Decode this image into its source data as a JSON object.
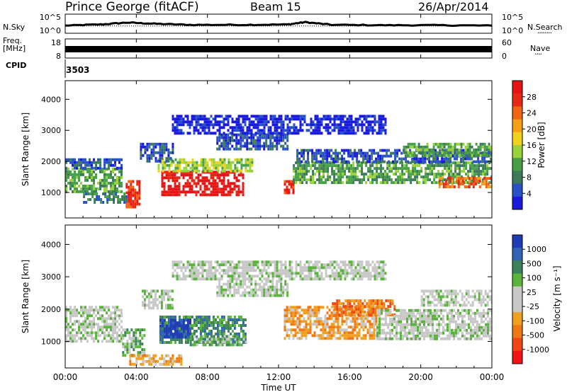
{
  "header": {
    "station": "Prince George (fitACF)",
    "beam": "Beam 15",
    "date": "26/Apr/2014"
  },
  "side_labels": {
    "nsky": "N.Sky",
    "freq_line1": "Freq.",
    "freq_line2": "[MHz]",
    "cpid": "CPID",
    "nsearch": "N.Search",
    "nave": "Nave",
    "dots_nsearch": "········",
    "dots_nave": "····"
  },
  "cpid_value": "3503",
  "colors": {
    "power_scale": [
      "#1a1adc",
      "#2a52c8",
      "#3c7a5a",
      "#46a046",
      "#9ad23c",
      "#f0d21e",
      "#f5a014",
      "#f06414",
      "#e62814",
      "#e61414"
    ],
    "velocity_scale": [
      "#1e3cb4",
      "#3264b4",
      "#3c825a",
      "#5ab43c",
      "#c8c8c8",
      "#c8c8c8",
      "#f0a01e",
      "#f07814",
      "#f04614",
      "#f01414"
    ]
  },
  "chart_data": [
    {
      "type": "line",
      "name": "noise-panel",
      "yleft_ticks": [
        "10^5",
        "10^0"
      ],
      "yright_ticks": [
        "10^5",
        "10^0"
      ],
      "series": [
        {
          "name": "N.Sky",
          "x": [
            "00:00",
            "02:00",
            "03:30",
            "05:00",
            "07:00",
            "10:00",
            "12:30",
            "13:30",
            "15:00",
            "18:00",
            "21:00",
            "24:00"
          ],
          "values": [
            2.0,
            2.3,
            2.8,
            2.5,
            2.2,
            2.2,
            2.3,
            2.9,
            2.2,
            2.1,
            2.1,
            2.0
          ]
        },
        {
          "name": "N.Search",
          "x": [
            "00:00",
            "12:00",
            "24:00"
          ],
          "values": [
            1.9,
            1.9,
            1.9
          ]
        }
      ]
    },
    {
      "type": "line",
      "name": "freq-panel",
      "yleft_ticks": [
        "18",
        "8"
      ],
      "yright_ticks": [
        "60",
        "0"
      ],
      "series": [
        {
          "name": "Freq.",
          "x": [
            "00:00",
            "24:00"
          ],
          "values": [
            11,
            11
          ]
        },
        {
          "name": "Nave",
          "x": [
            "00:00",
            "24:00"
          ],
          "values": [
            30,
            30
          ]
        }
      ]
    },
    {
      "type": "heatmap",
      "name": "power-panel",
      "xlabel": "",
      "ylabel": "Slant Range [km]",
      "xlim": [
        0,
        24
      ],
      "ylim": [
        180,
        4600
      ],
      "yticks": [
        1000,
        2000,
        3000,
        4000
      ],
      "colorbar_label": "Power [dB]",
      "colorbar_ticks": [
        "28",
        "24",
        "20",
        "16",
        "12",
        "8",
        "4"
      ],
      "colorbar_range": [
        0,
        32
      ],
      "bands": [
        {
          "t0": 0.0,
          "t1": 3.2,
          "r0": 1000,
          "r1": 1800,
          "level": 3
        },
        {
          "t0": 0.0,
          "t1": 3.2,
          "r0": 1800,
          "r1": 2100,
          "level": 1
        },
        {
          "t0": 1.0,
          "t1": 3.6,
          "r0": 700,
          "r1": 1000,
          "level": 2
        },
        {
          "t0": 3.4,
          "t1": 4.2,
          "r0": 500,
          "r1": 1400,
          "level": 8
        },
        {
          "t0": 5.4,
          "t1": 10.0,
          "r0": 900,
          "r1": 1700,
          "level": 9
        },
        {
          "t0": 5.2,
          "t1": 10.5,
          "r0": 1700,
          "r1": 2100,
          "level": 4
        },
        {
          "t0": 4.2,
          "t1": 6.0,
          "r0": 2000,
          "r1": 2600,
          "level": 1
        },
        {
          "t0": 8.5,
          "t1": 12.5,
          "r0": 2400,
          "r1": 2900,
          "level": 1
        },
        {
          "t0": 12.3,
          "t1": 12.8,
          "r0": 1000,
          "r1": 1400,
          "level": 8
        },
        {
          "t0": 12.8,
          "t1": 24.0,
          "r0": 1300,
          "r1": 2000,
          "level": 3
        },
        {
          "t0": 13.0,
          "t1": 24.0,
          "r0": 2000,
          "r1": 2400,
          "level": 1
        },
        {
          "t0": 19.0,
          "t1": 24.0,
          "r0": 2200,
          "r1": 2600,
          "level": 3
        },
        {
          "t0": 21.0,
          "t1": 24.0,
          "r0": 1200,
          "r1": 1500,
          "level": 7
        },
        {
          "t0": 6.0,
          "t1": 18.0,
          "r0": 2900,
          "r1": 3500,
          "level": 0
        }
      ]
    },
    {
      "type": "heatmap",
      "name": "velocity-panel",
      "xlabel": "Time UT",
      "ylabel": "Slant Range [km]",
      "xlim": [
        0,
        24
      ],
      "ylim": [
        180,
        4600
      ],
      "xticks": [
        "00:00",
        "04:00",
        "08:00",
        "12:00",
        "16:00",
        "20:00",
        "00:00"
      ],
      "yticks": [
        1000,
        2000,
        3000,
        4000
      ],
      "colorbar_label": "Velocity [m s⁻¹]",
      "colorbar_ticks": [
        "1000",
        "500",
        "100",
        "25",
        "-25",
        "-100",
        "-500",
        "-1000"
      ],
      "bands": [
        {
          "t0": 0.0,
          "t1": 3.2,
          "r0": 1000,
          "r1": 2100,
          "level": 4
        },
        {
          "t0": 3.2,
          "t1": 4.4,
          "r0": 600,
          "r1": 1400,
          "level": 3
        },
        {
          "t0": 5.3,
          "t1": 10.2,
          "r0": 1000,
          "r1": 1800,
          "level": 2
        },
        {
          "t0": 5.3,
          "t1": 7.0,
          "r0": 1100,
          "r1": 1700,
          "level": 0
        },
        {
          "t0": 7.0,
          "t1": 10.2,
          "r0": 900,
          "r1": 1200,
          "level": 3
        },
        {
          "t0": 4.3,
          "t1": 6.0,
          "r0": 2000,
          "r1": 2600,
          "level": 4
        },
        {
          "t0": 8.5,
          "t1": 12.5,
          "r0": 2400,
          "r1": 2900,
          "level": 4
        },
        {
          "t0": 12.3,
          "t1": 17.5,
          "r0": 1100,
          "r1": 2100,
          "level": 6
        },
        {
          "t0": 15.0,
          "t1": 18.5,
          "r0": 1800,
          "r1": 2300,
          "level": 7
        },
        {
          "t0": 17.5,
          "t1": 24.0,
          "r0": 1100,
          "r1": 2000,
          "level": 4
        },
        {
          "t0": 20.0,
          "t1": 24.0,
          "r0": 2100,
          "r1": 2600,
          "level": 4
        },
        {
          "t0": 3.6,
          "t1": 6.5,
          "r0": 300,
          "r1": 600,
          "level": 6
        },
        {
          "t0": 6.0,
          "t1": 18.0,
          "r0": 2900,
          "r1": 3500,
          "level": 4
        }
      ]
    }
  ]
}
